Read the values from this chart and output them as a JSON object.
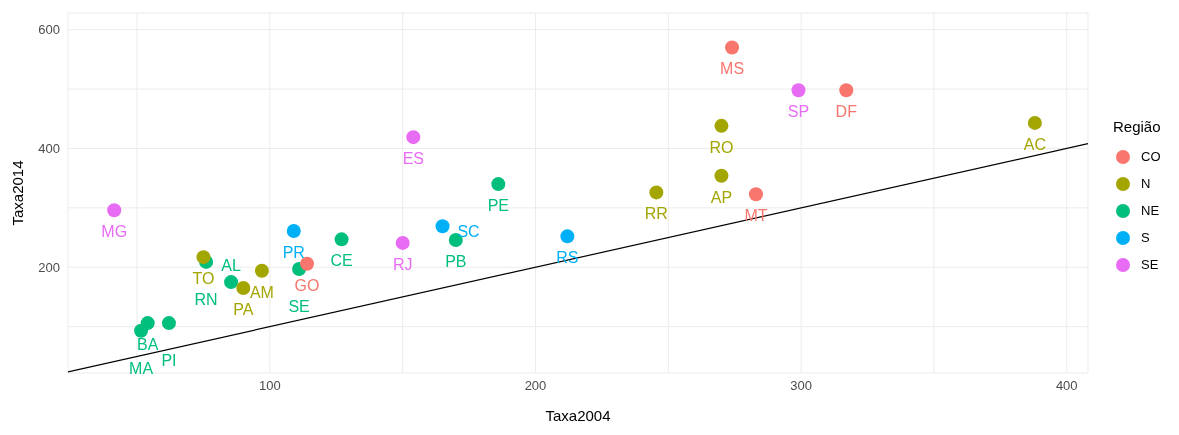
{
  "chart_data": {
    "type": "scatter",
    "xlabel": "Taxa2004",
    "ylabel": "Taxa2014",
    "legend_title": "Região",
    "legend": "right",
    "grid": true,
    "marker": "circle",
    "xlim": [
      24,
      408
    ],
    "ylim": [
      22,
      628
    ],
    "xticks": [
      {
        "value": 50,
        "label": null
      },
      100,
      {
        "value": 150,
        "label": null
      },
      200,
      {
        "value": 250,
        "label": null
      },
      300,
      {
        "value": 350,
        "label": null
      },
      400
    ],
    "yticks": [
      {
        "value": 100,
        "label": null
      },
      200,
      {
        "value": 300,
        "label": null
      },
      400,
      {
        "value": 500,
        "label": null
      },
      600
    ],
    "series": [
      {
        "name": "CO",
        "color": "#f8766d",
        "x": [
          274,
          283,
          317,
          114
        ],
        "values": [
          570,
          323,
          498,
          206
        ]
      },
      {
        "name": "N",
        "color": "#a3a500",
        "x": [
          75,
          97,
          90,
          245.5,
          270,
          270,
          388
        ],
        "values": [
          217,
          194,
          165,
          326,
          438,
          354,
          443
        ]
      },
      {
        "name": "NE",
        "color": "#00bf7d",
        "x": [
          76,
          85.4,
          111,
          127,
          170,
          186,
          54,
          62,
          51.5
        ],
        "values": [
          209,
          175,
          197,
          247,
          246,
          340,
          106,
          106,
          93
        ]
      },
      {
        "name": "S",
        "color": "#00b0f6",
        "x": [
          109,
          165,
          212
        ],
        "values": [
          261,
          269,
          252
        ]
      },
      {
        "name": "SE",
        "color": "#e76bf3",
        "x": [
          41.4,
          154,
          150,
          299
        ],
        "values": [
          296,
          419,
          241,
          498
        ]
      },
      {
        "type": "line",
        "color": "#000000",
        "marker": "none",
        "x": [
          24,
          408
        ],
        "values": [
          24,
          408
        ]
      }
    ],
    "annotations": [
      {
        "text": "MS",
        "x": 274,
        "y": 570
      },
      {
        "text": "MT",
        "x": 283,
        "y": 323
      },
      {
        "text": "DF",
        "x": 317,
        "y": 498
      },
      {
        "text": "GO",
        "x": 114,
        "y": 206
      },
      {
        "text": "TO",
        "x": 75,
        "y": 217
      },
      {
        "text": "AM",
        "x": 97,
        "y": 194
      },
      {
        "text": "PA",
        "x": 90,
        "y": 165
      },
      {
        "text": "RR",
        "x": 245.5,
        "y": 326
      },
      {
        "text": "RO",
        "x": 270,
        "y": 438
      },
      {
        "text": "AP",
        "x": 270,
        "y": 354
      },
      {
        "text": "AC",
        "x": 388,
        "y": 443
      },
      {
        "text": "RN",
        "x": 76,
        "y": 209
      },
      {
        "text": "AL",
        "x": 85.4,
        "y": 175
      },
      {
        "text": "SE",
        "x": 111,
        "y": 197
      },
      {
        "text": "CE",
        "x": 127,
        "y": 247
      },
      {
        "text": "PB",
        "x": 170,
        "y": 246
      },
      {
        "text": "PE",
        "x": 186,
        "y": 340
      },
      {
        "text": "BA",
        "x": 54,
        "y": 106
      },
      {
        "text": "PI",
        "x": 62,
        "y": 106
      },
      {
        "text": "MA",
        "x": 51.5,
        "y": 93
      },
      {
        "text": "PR",
        "x": 109,
        "y": 261
      },
      {
        "text": "SC",
        "x": 165,
        "y": 269
      },
      {
        "text": "RS",
        "x": 212,
        "y": 252
      },
      {
        "text": "MG",
        "x": 41.4,
        "y": 296
      },
      {
        "text": "ES",
        "x": 154,
        "y": 419
      },
      {
        "text": "RJ",
        "x": 150,
        "y": 241
      },
      {
        "text": "SP",
        "x": 299,
        "y": 498
      }
    ]
  }
}
